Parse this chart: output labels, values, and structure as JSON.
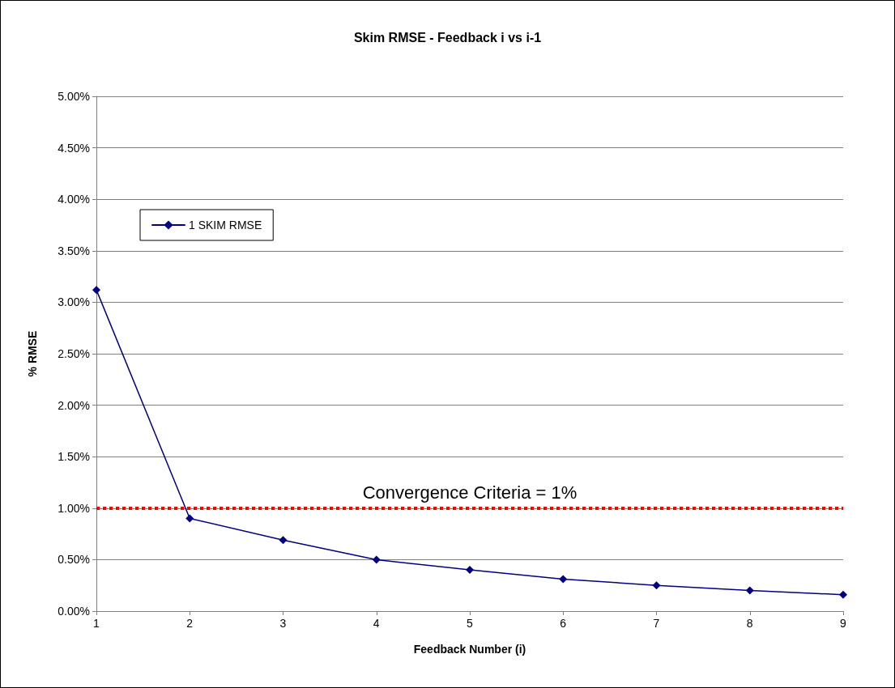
{
  "chart_data": {
    "type": "line",
    "title": "Skim RMSE - Feedback i vs i-1",
    "xlabel": "Feedback Number (i)",
    "ylabel": "% RMSE",
    "x": [
      1,
      2,
      3,
      4,
      5,
      6,
      7,
      8,
      9
    ],
    "series": [
      {
        "name": "1 SKIM RMSE",
        "color": "#000080",
        "values": [
          3.12,
          0.9,
          0.69,
          0.5,
          0.4,
          0.31,
          0.25,
          0.2,
          0.16
        ]
      }
    ],
    "xlim": [
      1,
      9
    ],
    "xticks": [
      1,
      2,
      3,
      4,
      5,
      6,
      7,
      8,
      9
    ],
    "ylim": [
      0,
      5
    ],
    "yticks": [
      {
        "value": 0,
        "label": "0.00%"
      },
      {
        "value": 0.5,
        "label": "0.50%"
      },
      {
        "value": 1,
        "label": "1.00%"
      },
      {
        "value": 1.5,
        "label": "1.50%"
      },
      {
        "value": 2,
        "label": "2.00%"
      },
      {
        "value": 2.5,
        "label": "2.50%"
      },
      {
        "value": 3,
        "label": "3.00%"
      },
      {
        "value": 3.5,
        "label": "3.50%"
      },
      {
        "value": 4,
        "label": "4.00%"
      },
      {
        "value": 4.5,
        "label": "4.50%"
      },
      {
        "value": 5,
        "label": "5.00%"
      }
    ],
    "ref_lines": [
      {
        "axis": "y",
        "value": 1,
        "label": "Convergence Criteria = 1%",
        "color": "#ff0000",
        "line_style": "dotted"
      }
    ],
    "grid": "y",
    "legend": "top left",
    "marker": "diamond",
    "line_style": "solid"
  }
}
